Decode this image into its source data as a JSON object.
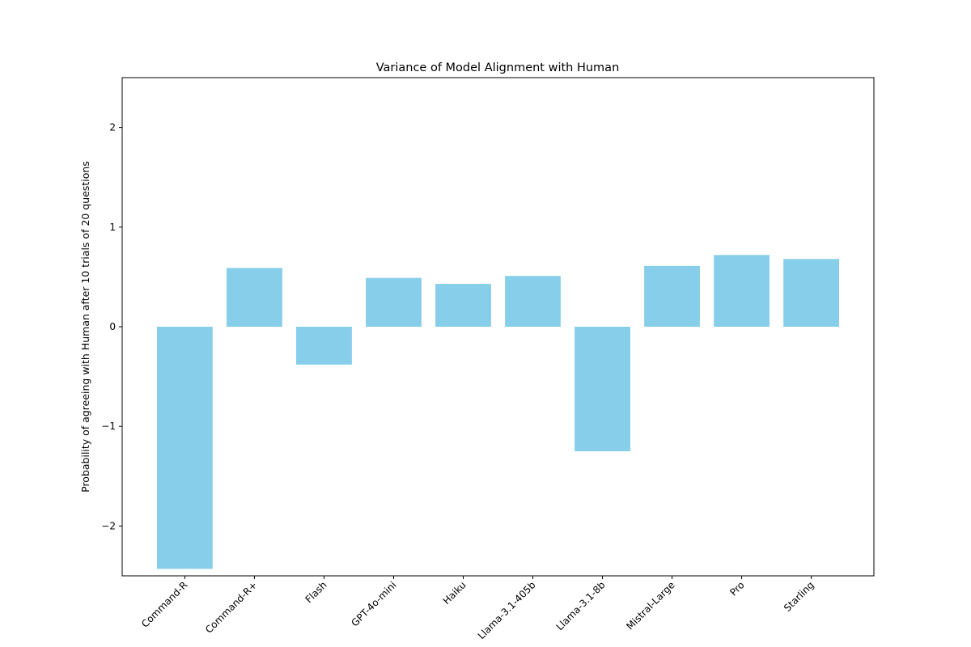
{
  "chart_data": {
    "type": "bar",
    "title": "Variance of Model Alignment with Human",
    "xlabel": "",
    "ylabel": "Probability of agreeing with Human after 10 trials of 20 questions",
    "categories": [
      "Command-R",
      "Command-R+",
      "Flash",
      "GPT-4o-mini",
      "Haiku",
      "Llama-3.1-405b",
      "Llama-3.1-8b",
      "Mistral-Large",
      "Pro",
      "Starling"
    ],
    "values": [
      -2.43,
      0.59,
      -0.38,
      0.49,
      0.43,
      0.51,
      -1.25,
      0.61,
      0.72,
      0.68
    ],
    "ylim": [
      -2.5,
      2.5
    ],
    "yticks": [
      -2,
      -1,
      0,
      1,
      2
    ],
    "ytick_labels": [
      "−2",
      "−1",
      "0",
      "1",
      "2"
    ],
    "bar_color": "#87CEEB",
    "grid": false,
    "legend": "none"
  }
}
